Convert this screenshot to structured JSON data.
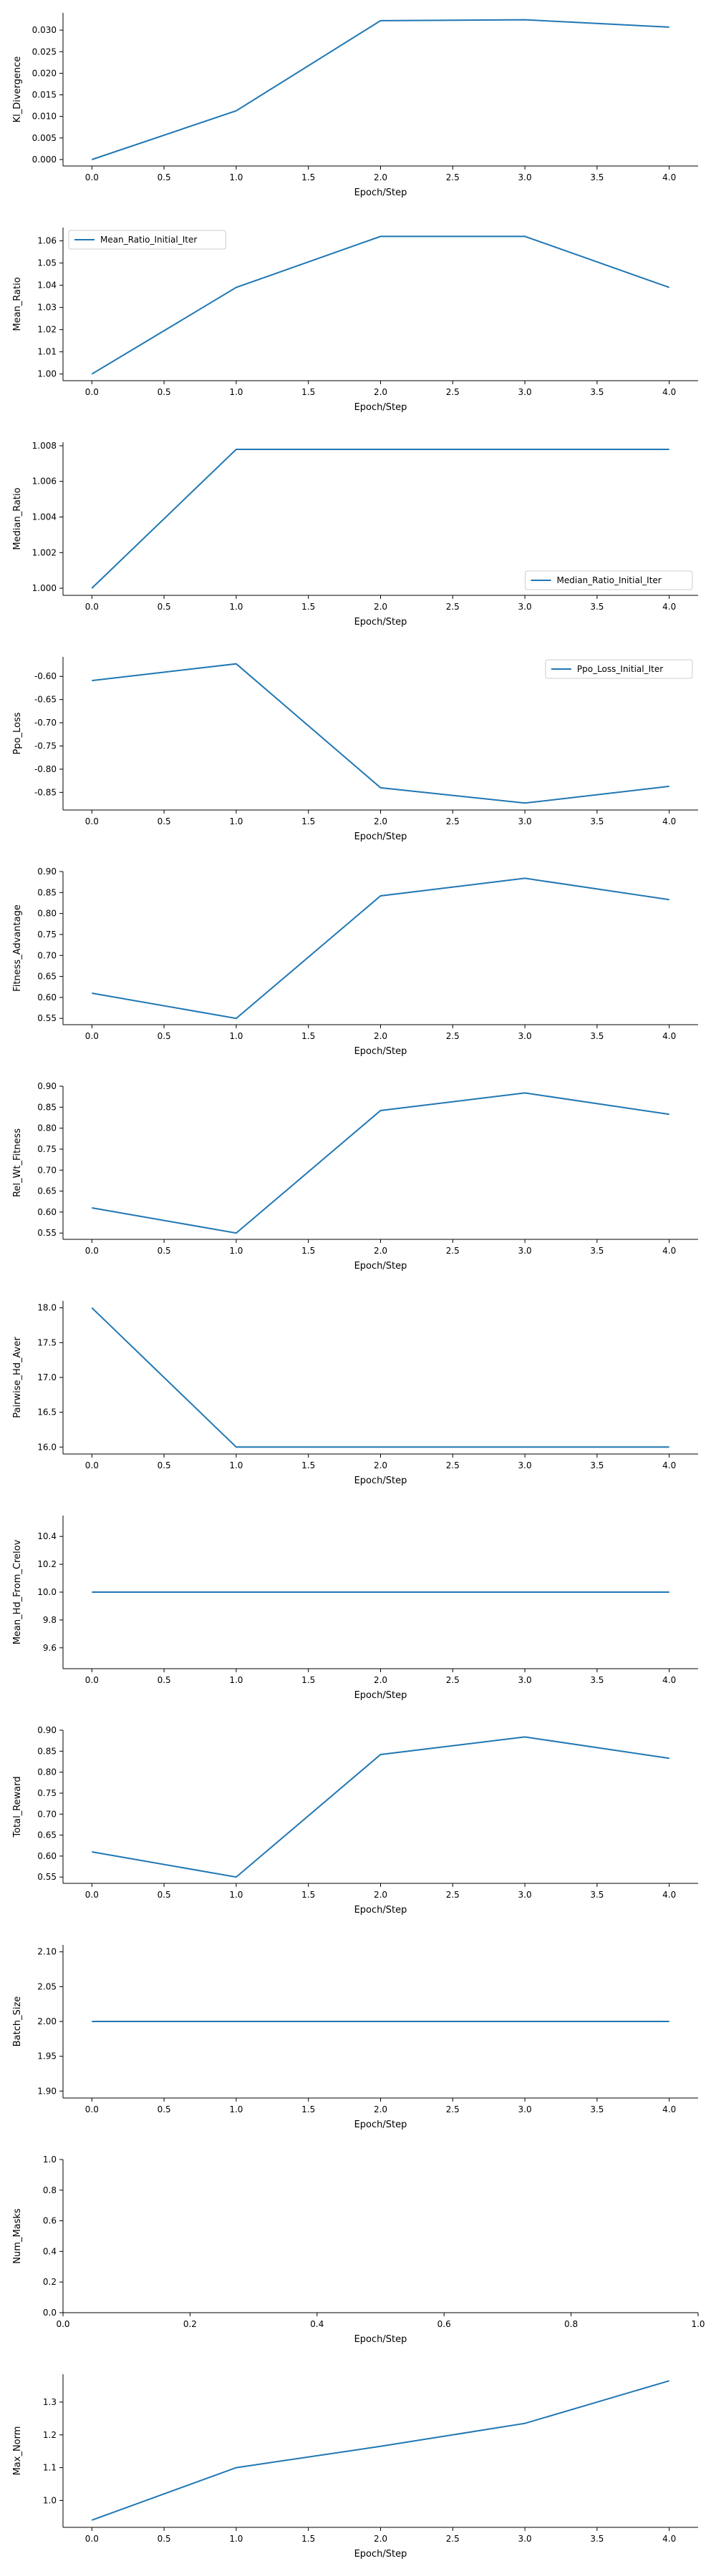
{
  "chart_data": [
    {
      "type": "line",
      "xlabel": "Epoch/Step",
      "ylabel": "Kl_Divergence",
      "x": [
        0,
        1,
        2,
        3,
        4
      ],
      "series": [
        {
          "values": [
            0.0,
            0.0113,
            0.0322,
            0.0324,
            0.0307
          ]
        }
      ],
      "xlim": [
        -0.2,
        4.2
      ],
      "ylim": [
        -0.0015,
        0.034
      ],
      "xticks": [
        0.0,
        0.5,
        1.0,
        1.5,
        2.0,
        2.5,
        3.0,
        3.5,
        4.0
      ],
      "xtick_labels": [
        "0.0",
        "0.5",
        "1.0",
        "1.5",
        "2.0",
        "2.5",
        "3.0",
        "3.5",
        "4.0"
      ],
      "yticks": [
        0.0,
        0.005,
        0.01,
        0.015,
        0.02,
        0.025,
        0.03
      ],
      "ytick_labels": [
        "0.000",
        "0.005",
        "0.010",
        "0.015",
        "0.020",
        "0.025",
        "0.030"
      ]
    },
    {
      "type": "line",
      "xlabel": "Epoch/Step",
      "ylabel": "Mean_Ratio",
      "x": [
        0,
        1,
        2,
        3,
        4
      ],
      "series": [
        {
          "name": "Mean_Ratio_Initial_Iter",
          "values": [
            1.0,
            1.039,
            1.062,
            1.062,
            1.039
          ]
        }
      ],
      "legend": "upper-left",
      "xlim": [
        -0.2,
        4.2
      ],
      "ylim": [
        0.997,
        1.066
      ],
      "xticks": [
        0.0,
        0.5,
        1.0,
        1.5,
        2.0,
        2.5,
        3.0,
        3.5,
        4.0
      ],
      "xtick_labels": [
        "0.0",
        "0.5",
        "1.0",
        "1.5",
        "2.0",
        "2.5",
        "3.0",
        "3.5",
        "4.0"
      ],
      "yticks": [
        1.0,
        1.01,
        1.02,
        1.03,
        1.04,
        1.05,
        1.06
      ],
      "ytick_labels": [
        "1.00",
        "1.01",
        "1.02",
        "1.03",
        "1.04",
        "1.05",
        "1.06"
      ]
    },
    {
      "type": "line",
      "xlabel": "Epoch/Step",
      "ylabel": "Median_Ratio",
      "x": [
        0,
        1,
        2,
        3,
        4
      ],
      "series": [
        {
          "name": "Median_Ratio_Initial_Iter",
          "values": [
            1.0,
            1.0078,
            1.0078,
            1.0078,
            1.0078
          ]
        }
      ],
      "legend": "lower-right",
      "xlim": [
        -0.2,
        4.2
      ],
      "ylim": [
        0.9996,
        1.0082
      ],
      "xticks": [
        0.0,
        0.5,
        1.0,
        1.5,
        2.0,
        2.5,
        3.0,
        3.5,
        4.0
      ],
      "xtick_labels": [
        "0.0",
        "0.5",
        "1.0",
        "1.5",
        "2.0",
        "2.5",
        "3.0",
        "3.5",
        "4.0"
      ],
      "yticks": [
        1.0,
        1.002,
        1.004,
        1.006,
        1.008
      ],
      "ytick_labels": [
        "1.000",
        "1.002",
        "1.004",
        "1.006",
        "1.008"
      ]
    },
    {
      "type": "line",
      "xlabel": "Epoch/Step",
      "ylabel": "Ppo_Loss",
      "x": [
        0,
        1,
        2,
        3,
        4
      ],
      "series": [
        {
          "name": "Ppo_Loss_Initial_Iter",
          "values": [
            -0.609,
            -0.573,
            -0.84,
            -0.873,
            -0.837
          ]
        }
      ],
      "legend": "upper-right",
      "xlim": [
        -0.2,
        4.2
      ],
      "ylim": [
        -0.888,
        -0.558
      ],
      "xticks": [
        0.0,
        0.5,
        1.0,
        1.5,
        2.0,
        2.5,
        3.0,
        3.5,
        4.0
      ],
      "xtick_labels": [
        "0.0",
        "0.5",
        "1.0",
        "1.5",
        "2.0",
        "2.5",
        "3.0",
        "3.5",
        "4.0"
      ],
      "yticks": [
        -0.6,
        -0.65,
        -0.7,
        -0.75,
        -0.8,
        -0.85
      ],
      "ytick_labels": [
        "-0.60",
        "-0.65",
        "-0.70",
        "-0.75",
        "-0.80",
        "-0.85"
      ]
    },
    {
      "type": "line",
      "xlabel": "Epoch/Step",
      "ylabel": "Fitness_Advantage",
      "x": [
        0,
        1,
        2,
        3,
        4
      ],
      "series": [
        {
          "values": [
            0.61,
            0.55,
            0.842,
            0.884,
            0.833
          ]
        }
      ],
      "xlim": [
        -0.2,
        4.2
      ],
      "ylim": [
        0.535,
        0.9
      ],
      "xticks": [
        0.0,
        0.5,
        1.0,
        1.5,
        2.0,
        2.5,
        3.0,
        3.5,
        4.0
      ],
      "xtick_labels": [
        "0.0",
        "0.5",
        "1.0",
        "1.5",
        "2.0",
        "2.5",
        "3.0",
        "3.5",
        "4.0"
      ],
      "yticks": [
        0.55,
        0.6,
        0.65,
        0.7,
        0.75,
        0.8,
        0.85,
        0.9
      ],
      "ytick_labels": [
        "0.55",
        "0.60",
        "0.65",
        "0.70",
        "0.75",
        "0.80",
        "0.85",
        "0.90"
      ]
    },
    {
      "type": "line",
      "xlabel": "Epoch/Step",
      "ylabel": "Rel_Wt_Fitness",
      "x": [
        0,
        1,
        2,
        3,
        4
      ],
      "series": [
        {
          "values": [
            0.61,
            0.55,
            0.842,
            0.884,
            0.833
          ]
        }
      ],
      "xlim": [
        -0.2,
        4.2
      ],
      "ylim": [
        0.535,
        0.9
      ],
      "xticks": [
        0.0,
        0.5,
        1.0,
        1.5,
        2.0,
        2.5,
        3.0,
        3.5,
        4.0
      ],
      "xtick_labels": [
        "0.0",
        "0.5",
        "1.0",
        "1.5",
        "2.0",
        "2.5",
        "3.0",
        "3.5",
        "4.0"
      ],
      "yticks": [
        0.55,
        0.6,
        0.65,
        0.7,
        0.75,
        0.8,
        0.85,
        0.9
      ],
      "ytick_labels": [
        "0.55",
        "0.60",
        "0.65",
        "0.70",
        "0.75",
        "0.80",
        "0.85",
        "0.90"
      ]
    },
    {
      "type": "line",
      "xlabel": "Epoch/Step",
      "ylabel": "Pairwise_Hd_Aver",
      "x": [
        0,
        1,
        2,
        3,
        4
      ],
      "series": [
        {
          "values": [
            18.0,
            16.0,
            16.0,
            16.0,
            16.0
          ]
        }
      ],
      "xlim": [
        -0.2,
        4.2
      ],
      "ylim": [
        15.9,
        18.1
      ],
      "xticks": [
        0.0,
        0.5,
        1.0,
        1.5,
        2.0,
        2.5,
        3.0,
        3.5,
        4.0
      ],
      "xtick_labels": [
        "0.0",
        "0.5",
        "1.0",
        "1.5",
        "2.0",
        "2.5",
        "3.0",
        "3.5",
        "4.0"
      ],
      "yticks": [
        16.0,
        16.5,
        17.0,
        17.5,
        18.0
      ],
      "ytick_labels": [
        "16.0",
        "16.5",
        "17.0",
        "17.5",
        "18.0"
      ]
    },
    {
      "type": "line",
      "xlabel": "Epoch/Step",
      "ylabel": "Mean_Hd_From_Crelov",
      "x": [
        0,
        1,
        2,
        3,
        4
      ],
      "series": [
        {
          "values": [
            10.0,
            10.0,
            10.0,
            10.0,
            10.0
          ]
        }
      ],
      "xlim": [
        -0.2,
        4.2
      ],
      "ylim": [
        9.45,
        10.55
      ],
      "xticks": [
        0.0,
        0.5,
        1.0,
        1.5,
        2.0,
        2.5,
        3.0,
        3.5,
        4.0
      ],
      "xtick_labels": [
        "0.0",
        "0.5",
        "1.0",
        "1.5",
        "2.0",
        "2.5",
        "3.0",
        "3.5",
        "4.0"
      ],
      "yticks": [
        9.6,
        9.8,
        10.0,
        10.2,
        10.4
      ],
      "ytick_labels": [
        "9.6",
        "9.8",
        "10.0",
        "10.2",
        "10.4"
      ]
    },
    {
      "type": "line",
      "xlabel": "Epoch/Step",
      "ylabel": "Total_Reward",
      "x": [
        0,
        1,
        2,
        3,
        4
      ],
      "series": [
        {
          "values": [
            0.61,
            0.55,
            0.842,
            0.884,
            0.833
          ]
        }
      ],
      "xlim": [
        -0.2,
        4.2
      ],
      "ylim": [
        0.535,
        0.9
      ],
      "xticks": [
        0.0,
        0.5,
        1.0,
        1.5,
        2.0,
        2.5,
        3.0,
        3.5,
        4.0
      ],
      "xtick_labels": [
        "0.0",
        "0.5",
        "1.0",
        "1.5",
        "2.0",
        "2.5",
        "3.0",
        "3.5",
        "4.0"
      ],
      "yticks": [
        0.55,
        0.6,
        0.65,
        0.7,
        0.75,
        0.8,
        0.85,
        0.9
      ],
      "ytick_labels": [
        "0.55",
        "0.60",
        "0.65",
        "0.70",
        "0.75",
        "0.80",
        "0.85",
        "0.90"
      ]
    },
    {
      "type": "line",
      "xlabel": "Epoch/Step",
      "ylabel": "Batch_Size",
      "x": [
        0,
        1,
        2,
        3,
        4
      ],
      "series": [
        {
          "values": [
            2.0,
            2.0,
            2.0,
            2.0,
            2.0
          ]
        }
      ],
      "xlim": [
        -0.2,
        4.2
      ],
      "ylim": [
        1.89,
        2.11
      ],
      "xticks": [
        0.0,
        0.5,
        1.0,
        1.5,
        2.0,
        2.5,
        3.0,
        3.5,
        4.0
      ],
      "xtick_labels": [
        "0.0",
        "0.5",
        "1.0",
        "1.5",
        "2.0",
        "2.5",
        "3.0",
        "3.5",
        "4.0"
      ],
      "yticks": [
        1.9,
        1.95,
        2.0,
        2.05,
        2.1
      ],
      "ytick_labels": [
        "1.90",
        "1.95",
        "2.00",
        "2.05",
        "2.10"
      ]
    },
    {
      "type": "line",
      "xlabel": "Epoch/Step",
      "ylabel": "Num_Masks",
      "x": [],
      "series": [],
      "xlim": [
        0.0,
        1.0
      ],
      "ylim": [
        0.0,
        1.0
      ],
      "xticks": [
        0.0,
        0.2,
        0.4,
        0.6,
        0.8,
        1.0
      ],
      "xtick_labels": [
        "0.0",
        "0.2",
        "0.4",
        "0.6",
        "0.8",
        "1.0"
      ],
      "yticks": [
        0.0,
        0.2,
        0.4,
        0.6,
        0.8,
        1.0
      ],
      "ytick_labels": [
        "0.0",
        "0.2",
        "0.4",
        "0.6",
        "0.8",
        "1.0"
      ]
    },
    {
      "type": "line",
      "xlabel": "Epoch/Step",
      "ylabel": "Max_Norm",
      "x": [
        0,
        1,
        2,
        3,
        4
      ],
      "series": [
        {
          "values": [
            0.94,
            1.1,
            1.165,
            1.235,
            1.365
          ]
        }
      ],
      "xlim": [
        -0.2,
        4.2
      ],
      "ylim": [
        0.918,
        1.385
      ],
      "xticks": [
        0.0,
        0.5,
        1.0,
        1.5,
        2.0,
        2.5,
        3.0,
        3.5,
        4.0
      ],
      "xtick_labels": [
        "0.0",
        "0.5",
        "1.0",
        "1.5",
        "2.0",
        "2.5",
        "3.0",
        "3.5",
        "4.0"
      ],
      "yticks": [
        1.0,
        1.1,
        1.2,
        1.3
      ],
      "ytick_labels": [
        "1.0",
        "1.1",
        "1.2",
        "1.3"
      ]
    }
  ]
}
